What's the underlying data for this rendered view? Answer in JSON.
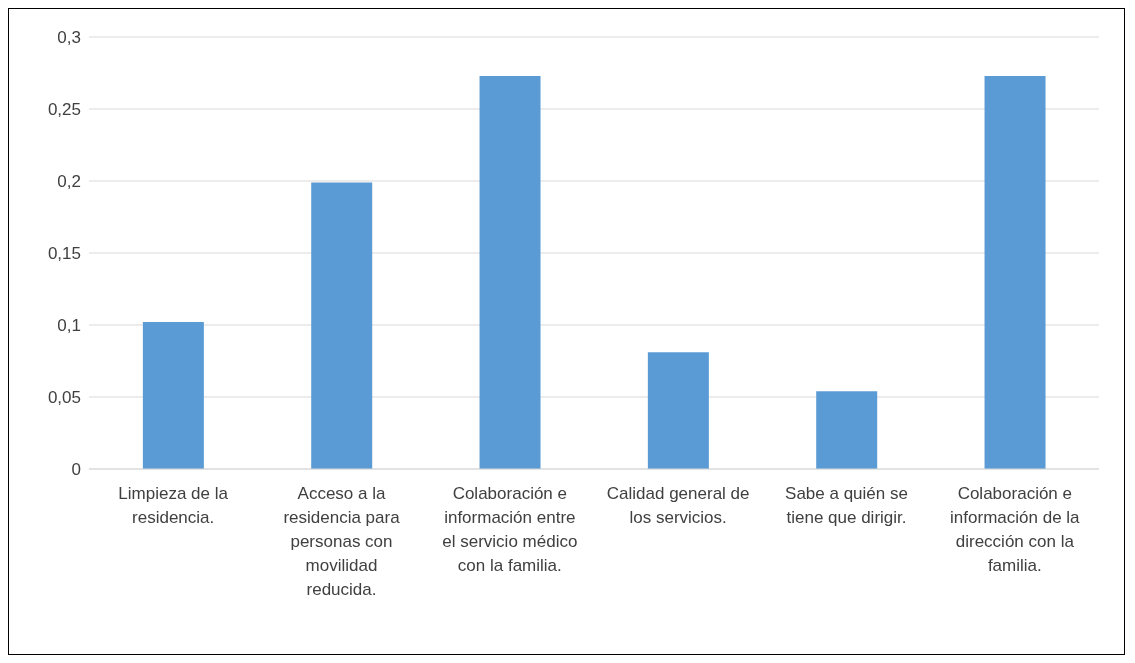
{
  "chart_data": {
    "type": "bar",
    "categories": [
      "Limpieza de la residencia.",
      "Acceso a la residencia para personas con movilidad reducida.",
      "Colaboración e información entre el servicio médico con la familia.",
      "Calidad general de los servicios.",
      "Sabe a quién se tiene que dirigir.",
      "Colaboración e información de la dirección con la familia."
    ],
    "values": [
      0.102,
      0.199,
      0.273,
      0.081,
      0.054,
      0.273
    ],
    "color": "#5b9bd5",
    "ylim": [
      0,
      0.3
    ],
    "yticks": [
      0,
      {
        "value": 0.05,
        "label": "0,05"
      },
      {
        "value": 0.1,
        "label": "0,1"
      },
      {
        "value": 0.15,
        "label": "0,15"
      },
      {
        "value": 0.2,
        "label": "0,2"
      },
      {
        "value": 0.25,
        "label": "0,25"
      },
      {
        "value": 0.3,
        "label": "0,3"
      }
    ],
    "grid": "y"
  }
}
